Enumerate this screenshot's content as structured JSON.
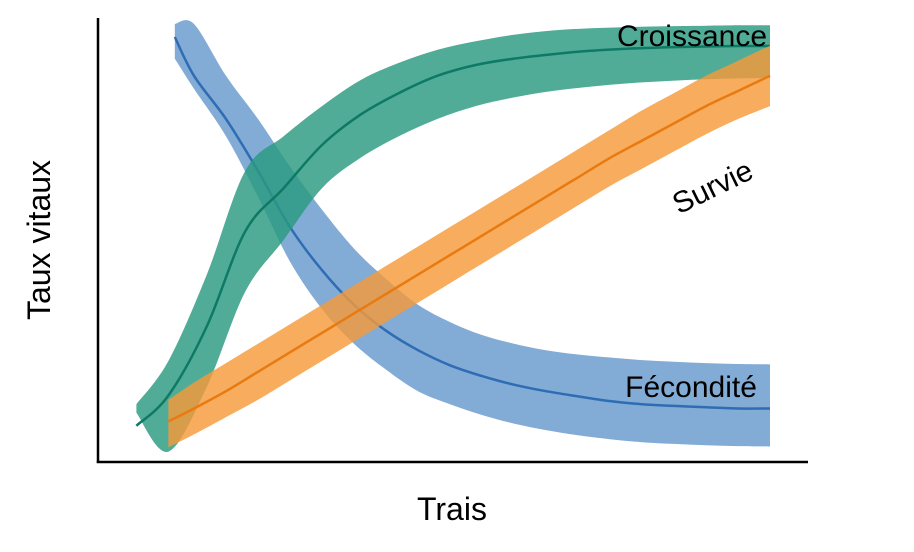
{
  "chart_data": {
    "type": "area",
    "title": "",
    "xlabel": "Trais",
    "ylabel": "Taux vitaux",
    "xlim": [
      0,
      100
    ],
    "ylim": [
      0,
      100
    ],
    "grid": false,
    "legend": "none",
    "series": [
      {
        "name": "Fécondité",
        "fill_color": "#6699CC",
        "line_color": "#2E6DB4",
        "x": [
          7,
          10,
          15,
          20,
          25,
          30,
          35,
          40,
          45,
          50,
          55,
          60,
          65,
          70,
          75,
          80,
          85,
          90,
          95,
          100
        ],
        "mid": [
          97,
          88,
          78,
          66,
          53,
          43,
          35,
          29,
          24.5,
          21,
          18.5,
          16.5,
          15,
          13.8,
          12.7,
          12,
          11.6,
          11.3,
          11,
          11
        ],
        "lower": [
          92,
          85,
          74,
          60,
          45,
          34,
          26,
          20,
          15,
          12,
          9.5,
          7.5,
          6,
          4.8,
          3.9,
          3.2,
          2.8,
          2.5,
          2.3,
          2.2
        ],
        "upper": [
          100,
          100,
          88,
          78,
          67,
          57,
          48,
          41,
          35,
          31,
          28,
          26,
          24.5,
          23.5,
          22.8,
          22.2,
          21.8,
          21.5,
          21.3,
          21.2
        ]
      },
      {
        "name": "Croissance",
        "fill_color": "#2A9A80",
        "line_color": "#0E7A65",
        "x": [
          1,
          6,
          12,
          18,
          24,
          30,
          36,
          42,
          48,
          54,
          60,
          66,
          72,
          78,
          84,
          90,
          95,
          100
        ],
        "mid": [
          7,
          14,
          30,
          52,
          62,
          72,
          79,
          84,
          88,
          90.5,
          92,
          93,
          93.8,
          94.3,
          94.6,
          94.8,
          94.9,
          94.9
        ],
        "lower": [
          10,
          1,
          16,
          38,
          50,
          62,
          69,
          74,
          78,
          81,
          83,
          84.5,
          85.5,
          86.3,
          86.8,
          87.2,
          87.4,
          87.5
        ],
        "upper": [
          12,
          22,
          42,
          66,
          74,
          81,
          87,
          91,
          94,
          96,
          97.5,
          98.5,
          99,
          99.3,
          99.5,
          99.6,
          99.7,
          99.7
        ]
      },
      {
        "name": "Survie",
        "fill_color": "#F59A3A",
        "line_color": "#E97A10",
        "x": [
          6,
          10,
          15,
          20,
          25,
          30,
          35,
          40,
          45,
          50,
          55,
          60,
          65,
          70,
          75,
          80,
          85,
          90,
          95,
          100
        ],
        "mid": [
          8,
          11,
          15,
          19.5,
          24,
          28.5,
          33,
          37.5,
          42,
          46.5,
          51,
          55.5,
          60,
          64.5,
          69,
          73,
          77,
          81,
          84.5,
          88
        ],
        "lower": [
          2,
          5,
          9,
          13,
          17.5,
          22,
          26.5,
          31,
          35.5,
          40,
          44.5,
          49,
          53.5,
          58,
          62.5,
          66.5,
          70.5,
          74.5,
          78,
          81
        ],
        "upper": [
          13,
          17,
          21.5,
          26,
          30.5,
          35,
          39.5,
          44,
          48.5,
          53,
          57.5,
          62,
          66.5,
          71,
          75.5,
          80,
          84,
          88,
          91.5,
          95
        ]
      }
    ]
  }
}
